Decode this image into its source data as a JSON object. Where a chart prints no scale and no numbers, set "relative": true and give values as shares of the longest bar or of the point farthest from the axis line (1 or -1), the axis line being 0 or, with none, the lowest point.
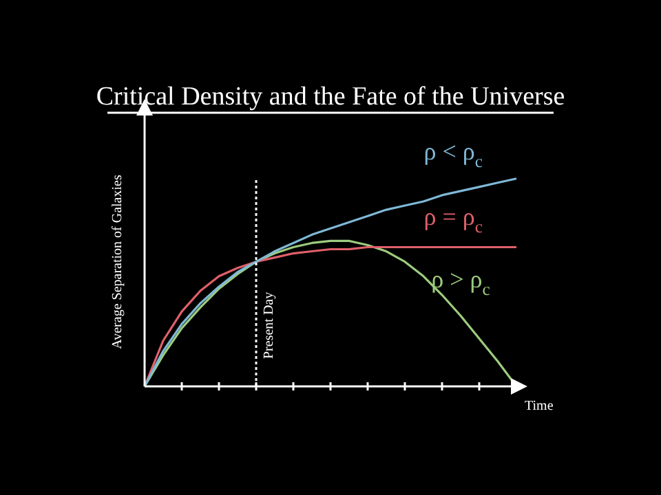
{
  "chart_data": {
    "type": "line",
    "title": "Critical Density and the Fate of the Universe",
    "xlabel": "Time",
    "ylabel": "Average Separation of Galaxies",
    "relative": true,
    "tick_labels": false,
    "grid": false,
    "legend": false,
    "marker": "none",
    "line_style": "solid",
    "categories": [
      null,
      null,
      null,
      null,
      null,
      null,
      null,
      null,
      null,
      null,
      null,
      null,
      null,
      null,
      null,
      null,
      null,
      null,
      null,
      null,
      null
    ],
    "series": [
      {
        "name": "ρ < ρ$_{c}$",
        "color": "#7fb8d6",
        "values": [
          0,
          0.17,
          0.3,
          0.4,
          0.48,
          0.55,
          0.6,
          0.65,
          0.69,
          0.73,
          0.76,
          0.79,
          0.82,
          0.85,
          0.87,
          0.89,
          0.92,
          0.94,
          0.96,
          0.98,
          1
        ]
      },
      {
        "name": "ρ = ρ$_{c}$",
        "color": "#e0606a",
        "values": [
          0,
          0.22,
          0.36,
          0.46,
          0.53,
          0.57,
          0.6,
          0.62,
          0.64,
          0.65,
          0.66,
          0.66,
          0.67,
          0.67,
          0.67,
          0.67,
          0.67,
          0.67,
          0.67,
          0.67,
          0.67
        ]
      },
      {
        "name": "ρ > ρ$_{c}$",
        "color": "#9ccc7e",
        "values": [
          0,
          0.15,
          0.28,
          0.38,
          0.47,
          0.54,
          0.6,
          0.64,
          0.67,
          0.69,
          0.7,
          0.7,
          0.68,
          0.65,
          0.6,
          0.53,
          0.44,
          0.34,
          0.23,
          0.12,
          0
        ]
      }
    ],
    "annotations": [
      "Present Day"
    ]
  }
}
